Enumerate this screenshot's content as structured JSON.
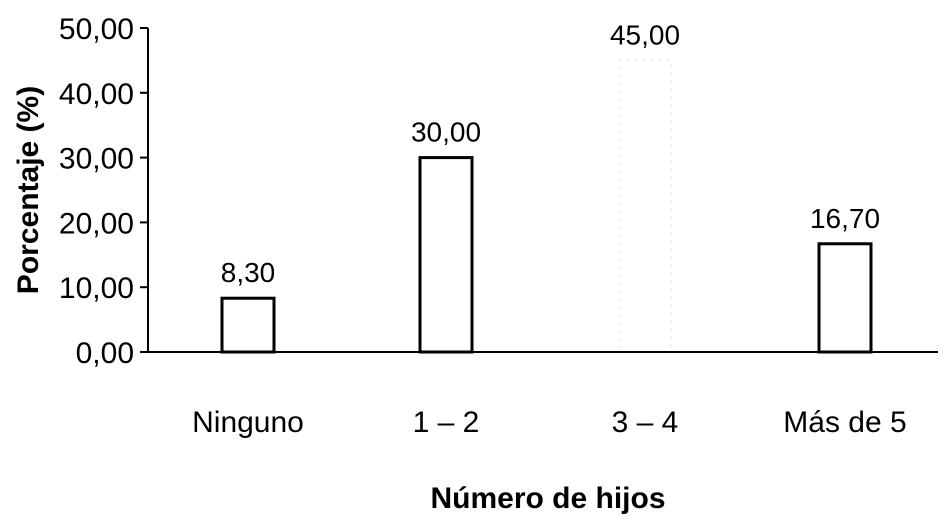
{
  "chart_data": {
    "type": "bar",
    "categories": [
      "Ninguno",
      "1 – 2",
      "3 – 4",
      "Más de 5"
    ],
    "values": [
      8.3,
      30.0,
      45.0,
      16.7
    ],
    "data_labels": [
      "8,30",
      "30,00",
      "45,00",
      "16,70"
    ],
    "xlabel": "Número de hijos",
    "ylabel": "Porcentaje (%)",
    "ylim": [
      0,
      50
    ],
    "yticks": [
      0,
      10,
      20,
      30,
      40,
      50
    ],
    "ytick_labels": [
      "0,00",
      "10,00",
      "20,00",
      "30,00",
      "40,00",
      "50,00"
    ],
    "grid": false,
    "legend": "none",
    "colors": {
      "bar_fill": "#ffffff",
      "bar_stroke": "#000000",
      "axis": "#000000"
    }
  }
}
